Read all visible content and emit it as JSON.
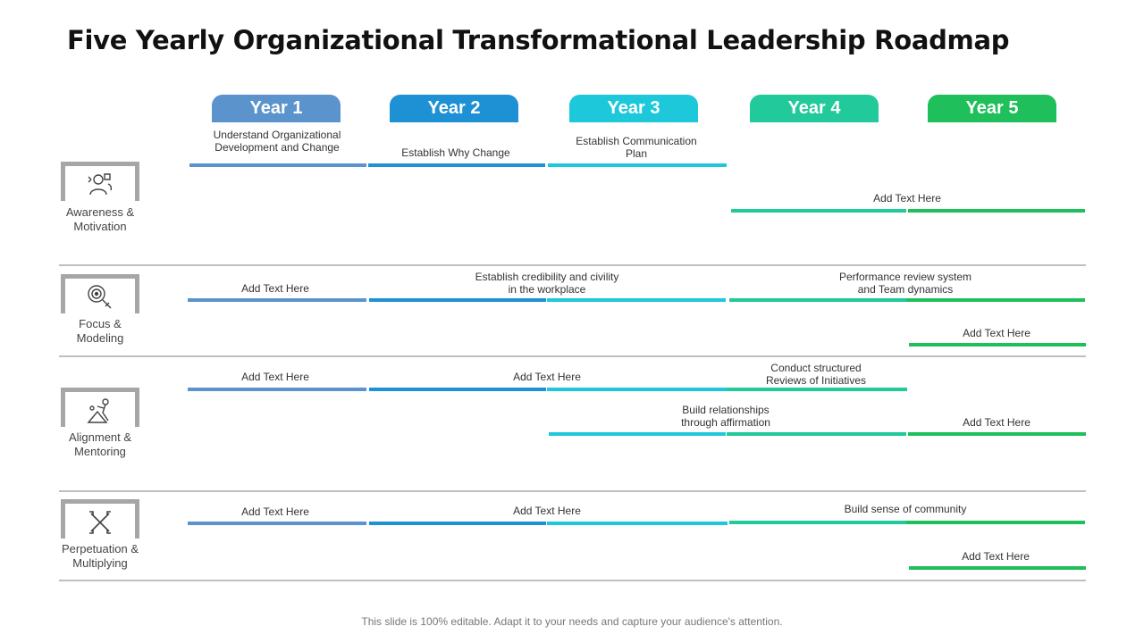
{
  "title": "Five Yearly Organizational Transformational Leadership Roadmap",
  "years": [
    {
      "label": "Year 1",
      "color": "#5b93cd"
    },
    {
      "label": "Year 2",
      "color": "#1e90d4"
    },
    {
      "label": "Year 3",
      "color": "#1ec8db"
    },
    {
      "label": "Year 4",
      "color": "#22c99a"
    },
    {
      "label": "Year 5",
      "color": "#1fbf5b"
    }
  ],
  "categories": [
    {
      "label": "Awareness &\nMotivation",
      "icon": "team-idea-icon"
    },
    {
      "label": "Focus &\nModeling",
      "icon": "target-magnifier-icon"
    },
    {
      "label": "Alignment &\nMentoring",
      "icon": "mentoring-people-icon"
    },
    {
      "label": "Perpetuation &\nMultiplying",
      "icon": "cross-tools-icon"
    }
  ],
  "tasks": {
    "r1a": "Understand Organizational\nDevelopment and Change",
    "r1b": "Establish Why Change",
    "r1c": "Establish Communication\nPlan",
    "r1d": "Add Text Here",
    "r2a": "Add Text Here",
    "r2b": "Establish credibility and civility\nin the workplace",
    "r2c": "Performance review system\nand Team dynamics",
    "r2d": "Add Text Here",
    "r3a": "Add Text Here",
    "r3b": "Add Text Here",
    "r3c": "Conduct structured\nReviews of Initiatives",
    "r3d": "Build relationships\nthrough affirmation",
    "r3e": "Add Text Here",
    "r4a": "Add Text Here",
    "r4b": "Add Text Here",
    "r4c": "Build sense of community",
    "r4d": "Add Text Here"
  },
  "footer": "This slide is 100% editable. Adapt it to your needs and capture your audience's attention.",
  "colors": {
    "divider": "#bfbfbf",
    "icon_frame": "#a6a6a6"
  }
}
